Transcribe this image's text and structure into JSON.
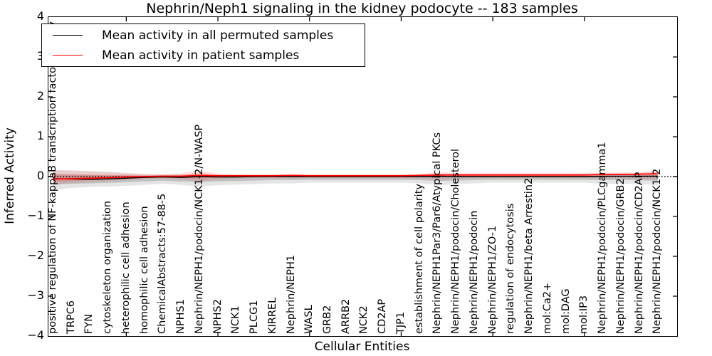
{
  "title": "Nephrin/Neph1 signaling in the kidney podocyte -- 183 samples",
  "axes": {
    "ylabel": "Inferred Activity",
    "xlabel": "Cellular Entities",
    "yticks": [
      4,
      3,
      2,
      1,
      0,
      -1,
      -2,
      -3,
      -4
    ],
    "ylim": [
      -4,
      4
    ]
  },
  "legend": {
    "items": [
      {
        "label": "Mean activity in all permuted samples",
        "color": "#000000"
      },
      {
        "label": "Mean activity in patient samples",
        "color": "#ff0000"
      }
    ]
  },
  "chart_data": {
    "type": "line",
    "title": "Nephrin/Neph1 signaling in the kidney podocyte -- 183 samples",
    "xlabel": "Cellular Entities",
    "ylabel": "Inferred Activity",
    "ylim": [
      -4,
      4
    ],
    "zero_line_style": "dotted",
    "legend_position": "upper left",
    "grid": false,
    "categories": [
      "positive regulation of NF-kappaB transcription factor activity",
      "TRPC6",
      "FYN",
      "cytoskeleton organization",
      "heterophilic cell adhesion",
      "homophilic cell adhesion",
      "ChemicalAbstracts:57-88-5",
      "NPHS1",
      "Nephrin/NEPH1/podocin/NCK1-2/N-WASP",
      "NPHS2",
      "NCK1",
      "PLCG1",
      "KIRREL",
      "Nephrin/NEPH1",
      "WASL",
      "GRB2",
      "ARRB2",
      "NCK2",
      "CD2AP",
      "TJP1",
      "establishment of cell polarity",
      "Nephrin/NEPH1Par3/Par6/Atypical PKCs",
      "Nephrin/NEPH1/podocin/Cholesterol",
      "Nephrin/NEPH1/podocin",
      "Nephrin/NEPH1/ZO-1",
      "regulation of endocytosis",
      "Nephrin/NEPH1/beta Arrestin2",
      "mol:Ca2+",
      "mol:DAG",
      "mol:IP3",
      "Nephrin/NEPH1/podocin/PLCgamma1",
      "Nephrin/NEPH1/podocin/GRB2",
      "Nephrin/NEPH1/podocin/CD2AP",
      "Nephrin/NEPH1/podocin/NCK1-2"
    ],
    "series": [
      {
        "name": "Mean activity in all permuted samples",
        "color": "#000000",
        "band_rgb": "0,0,0",
        "values": [
          -0.05,
          -0.06,
          -0.07,
          -0.06,
          -0.04,
          -0.02,
          -0.01,
          -0.02,
          0.0,
          -0.01,
          -0.01,
          0.0,
          0.0,
          0.0,
          0.0,
          0.0,
          0.0,
          0.0,
          0.0,
          0.0,
          0.0,
          0.01,
          0.0,
          0.0,
          0.0,
          0.0,
          0.0,
          0.0,
          0.0,
          0.0,
          0.01,
          0.01,
          0.01,
          0.01
        ],
        "band_lo": [
          -0.2,
          -0.18,
          -0.17,
          -0.16,
          -0.14,
          -0.12,
          -0.1,
          -0.12,
          -0.13,
          -0.12,
          -0.11,
          -0.1,
          -0.09,
          -0.09,
          -0.08,
          -0.08,
          -0.08,
          -0.08,
          -0.08,
          -0.08,
          -0.09,
          -0.11,
          -0.1,
          -0.09,
          -0.08,
          -0.08,
          -0.08,
          -0.08,
          -0.08,
          -0.08,
          -0.09,
          -0.09,
          -0.09,
          -0.11
        ],
        "band_hi": [
          0.06,
          0.05,
          0.04,
          0.03,
          0.03,
          0.02,
          0.02,
          0.02,
          0.03,
          0.02,
          0.02,
          0.02,
          0.02,
          0.02,
          0.02,
          0.02,
          0.02,
          0.02,
          0.02,
          0.02,
          0.02,
          0.03,
          0.02,
          0.02,
          0.02,
          0.02,
          0.02,
          0.02,
          0.02,
          0.02,
          0.02,
          0.02,
          0.02,
          0.03
        ]
      },
      {
        "name": "Mean activity in patient samples",
        "color": "#ff0000",
        "band_rgb": "255,0,0",
        "values": [
          -0.06,
          -0.05,
          -0.04,
          -0.03,
          -0.01,
          0.0,
          0.01,
          0.01,
          0.03,
          0.02,
          0.02,
          0.02,
          0.02,
          0.03,
          0.02,
          0.02,
          0.02,
          0.02,
          0.02,
          0.02,
          0.03,
          0.04,
          0.04,
          0.04,
          0.04,
          0.04,
          0.04,
          0.04,
          0.04,
          0.04,
          0.05,
          0.05,
          0.06,
          0.07
        ],
        "band_lo": [
          -0.13,
          -0.11,
          -0.09,
          -0.07,
          -0.05,
          -0.03,
          -0.02,
          -0.03,
          -0.05,
          -0.03,
          -0.02,
          -0.01,
          -0.01,
          -0.01,
          -0.01,
          -0.01,
          -0.01,
          -0.01,
          -0.01,
          -0.01,
          -0.01,
          -0.02,
          -0.01,
          0.0,
          0.0,
          0.0,
          0.0,
          0.0,
          0.0,
          0.0,
          0.0,
          0.0,
          0.0,
          -0.01
        ],
        "band_hi": [
          0.06,
          0.06,
          0.05,
          0.05,
          0.04,
          0.04,
          0.04,
          0.05,
          0.1,
          0.05,
          0.04,
          0.04,
          0.04,
          0.05,
          0.04,
          0.04,
          0.04,
          0.04,
          0.04,
          0.04,
          0.05,
          0.08,
          0.07,
          0.07,
          0.07,
          0.07,
          0.07,
          0.07,
          0.07,
          0.07,
          0.08,
          0.08,
          0.09,
          0.12
        ]
      }
    ]
  },
  "colors": {
    "axis": "#000000",
    "permuted_line": "#000000",
    "patient_line": "#ff0000",
    "background": "#ffffff"
  }
}
